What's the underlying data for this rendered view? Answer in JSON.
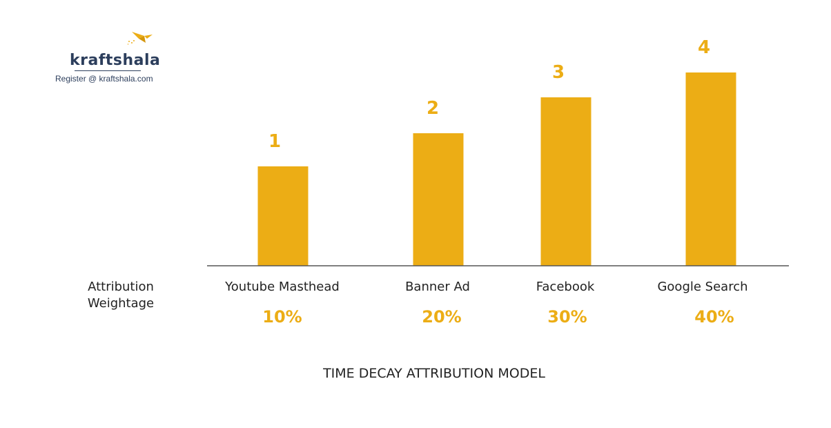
{
  "brand": {
    "name": "kraftshala",
    "register_text": "Register @ kraftshala.com",
    "logo_icon": "bird-logo-icon",
    "colors": {
      "navy": "#2c3e5c",
      "accent": "#ecad15"
    }
  },
  "row_label_lines": [
    "Attribution",
    "Weightage"
  ],
  "chart_data": {
    "type": "bar",
    "title": "TIME DECAY ATTRIBUTION MODEL",
    "categories": [
      "Youtube Masthead",
      "Banner Ad",
      "Facebook",
      "Google Search"
    ],
    "values": [
      1,
      2,
      3,
      4
    ],
    "value_labels": [
      "1",
      "2",
      "3",
      "4"
    ],
    "weightage": [
      "10%",
      "20%",
      "30%",
      "40%"
    ],
    "bar_color": "#ecad15",
    "ylim": [
      0,
      5.1
    ],
    "grid": false,
    "legend": "none"
  }
}
